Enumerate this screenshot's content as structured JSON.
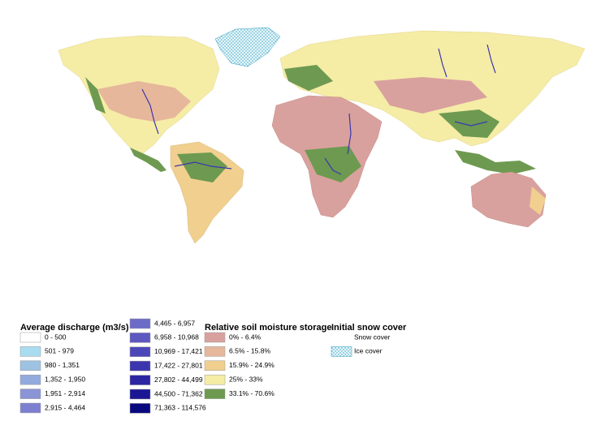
{
  "legends": [
    {
      "title": "Average discharge (m3/s)",
      "items": [
        {
          "label": "0 - 500",
          "color": "#ffffff"
        },
        {
          "label": "501 - 979",
          "color": "#a9dcef"
        },
        {
          "label": "980 - 1,351",
          "color": "#9dc2e2"
        },
        {
          "label": "1,352 - 1,950",
          "color": "#93aadc"
        },
        {
          "label": "1,951 - 2,914",
          "color": "#8a94d6"
        },
        {
          "label": "2,915 - 4,464",
          "color": "#7d80d0"
        },
        {
          "label": "4,465 - 6,957",
          "color": "#6c6cc8"
        },
        {
          "label": "6,958 - 10,968",
          "color": "#5c58c0"
        },
        {
          "label": "10,969 - 17,421",
          "color": "#4c47b8"
        },
        {
          "label": "17,422 - 27,801",
          "color": "#3c36ae"
        },
        {
          "label": "27,802 - 44,499",
          "color": "#2c26a2"
        },
        {
          "label": "44,500 - 71,362",
          "color": "#1b1693"
        },
        {
          "label": "71,363 - 114,576",
          "color": "#08087f"
        }
      ]
    },
    {
      "title": "Relative soil moisture storage",
      "items": [
        {
          "label": "0% - 6.4%",
          "color": "#d9a19e"
        },
        {
          "label": "6.5% - 15.8%",
          "color": "#e6b79b"
        },
        {
          "label": "15.9% - 24.9%",
          "color": "#f1cf8f"
        },
        {
          "label": "25% - 33%",
          "color": "#f5eca6"
        },
        {
          "label": "33.1% - 70.6%",
          "color": "#6d9a50"
        }
      ]
    },
    {
      "title": "Initial snow cover",
      "items": [
        {
          "label": "Snow cover",
          "color": "#ffffff"
        },
        {
          "label": "Ice cover",
          "color": "#bfe8f2"
        }
      ]
    }
  ]
}
